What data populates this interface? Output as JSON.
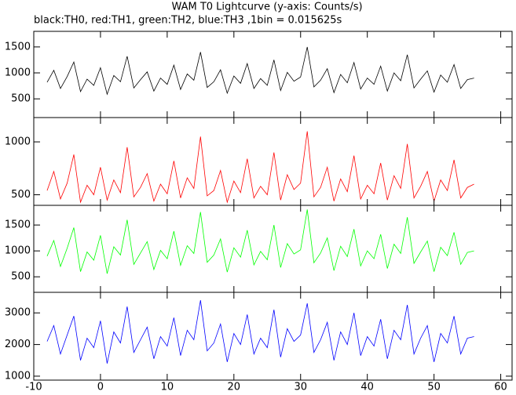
{
  "chart_data": {
    "type": "line",
    "title": "WAM T0 Lightcurve (y-axis: Counts/s)",
    "subtitle": "black:TH0, red:TH1, green:TH2, blue:TH3 ,1bin = 0.015625s",
    "x": [
      -8,
      -7,
      -6,
      -5,
      -4,
      -3,
      -2,
      -1,
      0,
      1,
      2,
      3,
      4,
      5,
      6,
      7,
      8,
      9,
      10,
      11,
      12,
      13,
      14,
      15,
      16,
      17,
      18,
      19,
      20,
      21,
      22,
      23,
      24,
      25,
      26,
      27,
      28,
      29,
      30,
      31,
      32,
      33,
      34,
      35,
      36,
      37,
      38,
      39,
      40,
      41,
      42,
      43,
      44,
      45,
      46,
      47,
      48,
      49,
      50,
      51,
      52,
      53,
      54,
      55,
      56
    ],
    "xlim": [
      -10,
      61.7
    ],
    "xticks": [
      -10,
      0,
      10,
      20,
      30,
      40,
      50,
      60
    ],
    "series": [
      {
        "color": "#000000",
        "ylim": [
          140,
          1800
        ],
        "yticks": [
          500,
          1000,
          1500
        ],
        "values": [
          820,
          1050,
          700,
          930,
          1210,
          640,
          880,
          760,
          1100,
          590,
          950,
          830,
          1320,
          710,
          870,
          1020,
          650,
          900,
          780,
          1150,
          680,
          980,
          860,
          1400,
          720,
          830,
          1060,
          610,
          940,
          800,
          1180,
          700,
          890,
          760,
          1250,
          660,
          1010,
          840,
          920,
          1500,
          730,
          860,
          1080,
          620,
          970,
          810,
          1200,
          690,
          900,
          780,
          1130,
          650,
          1000,
          850,
          1350,
          710,
          880,
          1040,
          630,
          960,
          820,
          1160,
          700,
          870,
          900
        ]
      },
      {
        "color": "#ff0000",
        "ylim": [
          400,
          1230
        ],
        "yticks": [
          500,
          1000
        ],
        "values": [
          540,
          720,
          460,
          610,
          880,
          430,
          590,
          500,
          760,
          450,
          640,
          520,
          950,
          480,
          570,
          700,
          440,
          600,
          510,
          820,
          470,
          660,
          560,
          1050,
          490,
          540,
          730,
          430,
          630,
          520,
          840,
          470,
          580,
          500,
          900,
          450,
          690,
          550,
          610,
          1100,
          480,
          570,
          760,
          440,
          650,
          530,
          870,
          460,
          590,
          510,
          800,
          450,
          680,
          560,
          980,
          470,
          580,
          720,
          440,
          640,
          540,
          830,
          470,
          570,
          600
        ]
      },
      {
        "color": "#00ff00",
        "ylim": [
          200,
          1880
        ],
        "yticks": [
          500,
          1000,
          1500
        ],
        "values": [
          900,
          1200,
          700,
          1050,
          1450,
          600,
          980,
          820,
          1300,
          560,
          1080,
          920,
          1600,
          740,
          960,
          1180,
          640,
          1010,
          850,
          1380,
          720,
          1100,
          950,
          1750,
          780,
          920,
          1230,
          590,
          1060,
          880,
          1400,
          730,
          990,
          830,
          1500,
          680,
          1140,
          940,
          1020,
          1800,
          770,
          960,
          1250,
          620,
          1090,
          890,
          1420,
          710,
          1000,
          850,
          1320,
          660,
          1130,
          950,
          1650,
          760,
          980,
          1190,
          600,
          1070,
          910,
          1360,
          740,
          970,
          1000
        ]
      },
      {
        "color": "#0000ff",
        "ylim": [
          875,
          3650
        ],
        "yticks": [
          1000,
          2000,
          3000
        ],
        "values": [
          2100,
          2600,
          1700,
          2300,
          2900,
          1500,
          2200,
          1900,
          2750,
          1400,
          2400,
          2050,
          3200,
          1750,
          2150,
          2550,
          1550,
          2250,
          1950,
          2850,
          1650,
          2450,
          2150,
          3400,
          1800,
          2050,
          2650,
          1450,
          2350,
          2000,
          2950,
          1700,
          2200,
          1900,
          3100,
          1600,
          2500,
          2100,
          2300,
          3300,
          1750,
          2150,
          2700,
          1500,
          2400,
          2000,
          3000,
          1650,
          2250,
          1950,
          2800,
          1550,
          2450,
          2150,
          3250,
          1700,
          2200,
          2600,
          1450,
          2350,
          2050,
          2900,
          1700,
          2200,
          2250
        ]
      }
    ]
  }
}
